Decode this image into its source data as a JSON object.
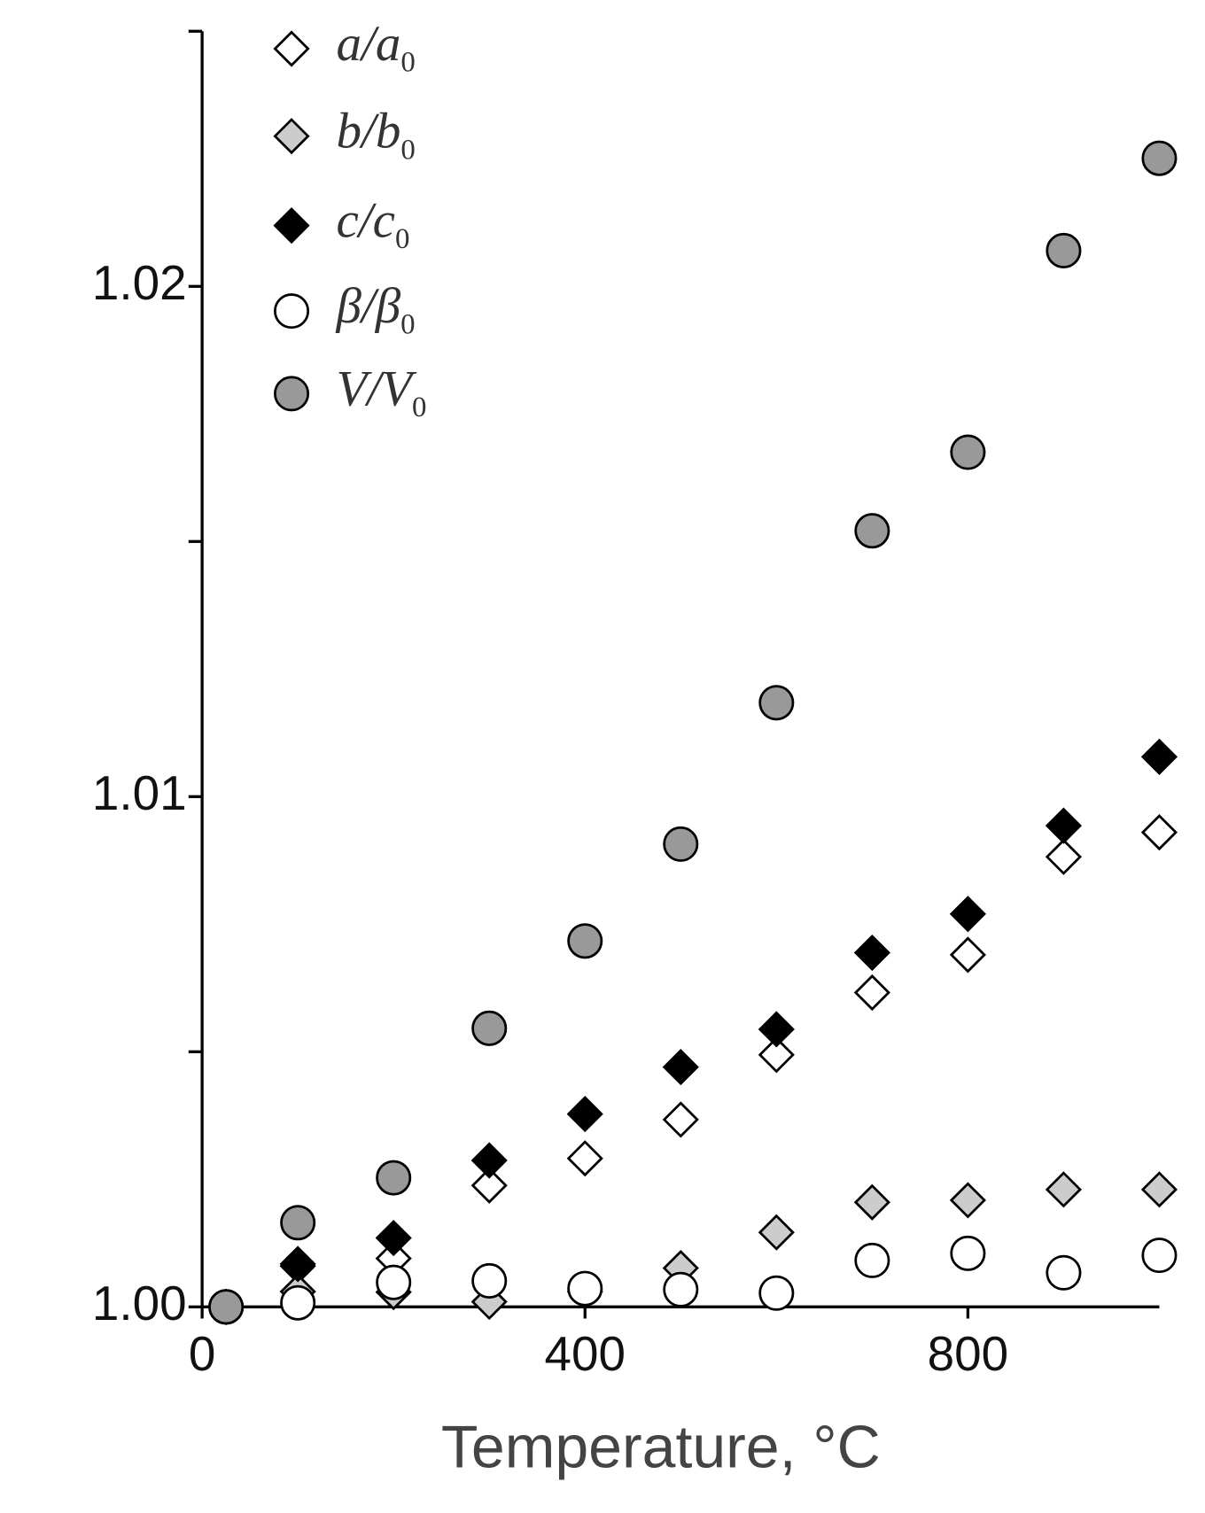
{
  "chart_data": {
    "type": "scatter",
    "x_label": "Temperature, °C",
    "xlim": [
      0,
      1000
    ],
    "xticks": [
      0,
      400,
      800
    ],
    "ylim": [
      1,
      1.025
    ],
    "yticks": [
      {
        "value": 1,
        "label": "1.00"
      },
      1.01,
      1.02
    ],
    "yminorticks": [
      1.005,
      1.015,
      1.025
    ],
    "legend": "upper left",
    "x": [
      25,
      100,
      200,
      300,
      400,
      500,
      600,
      700,
      800,
      900,
      1000
    ],
    "series": [
      {
        "name": "a/a0",
        "marker": "diamond",
        "color": "#ffffff",
        "values": [
          1.0,
          1.0008,
          1.00095,
          1.00238,
          1.00291,
          1.00367,
          1.00494,
          1.00616,
          1.0069,
          1.00882,
          1.0093
        ]
      },
      {
        "name": "b/b0",
        "marker": "diamond",
        "color": "#cccccc",
        "values": [
          1.0,
          1.0003,
          1.00029,
          1.0001,
          1.0003,
          1.00076,
          1.00146,
          1.00205,
          1.00209,
          1.0023,
          1.0023
        ]
      },
      {
        "name": "c/c0",
        "marker": "diamond",
        "color": "#000000",
        "values": [
          1.0,
          1.00084,
          1.00135,
          1.00287,
          1.00378,
          1.0047,
          1.00544,
          1.00694,
          1.0077,
          1.00943,
          1.01078
        ]
      },
      {
        "name": "β/β0",
        "marker": "circle",
        "color": "#ffffff",
        "values": [
          1.0,
          1.00008,
          1.00048,
          1.00051,
          1.00036,
          1.00034,
          1.00027,
          1.00091,
          1.00105,
          1.00067,
          1.00101
        ]
      },
      {
        "name": "V/V0",
        "marker": "circle",
        "color": "#999999",
        "values": [
          1.0,
          1.00165,
          1.00253,
          1.00546,
          1.00717,
          1.00907,
          1.01184,
          1.01521,
          1.01675,
          1.0207,
          1.02251
        ]
      }
    ]
  }
}
